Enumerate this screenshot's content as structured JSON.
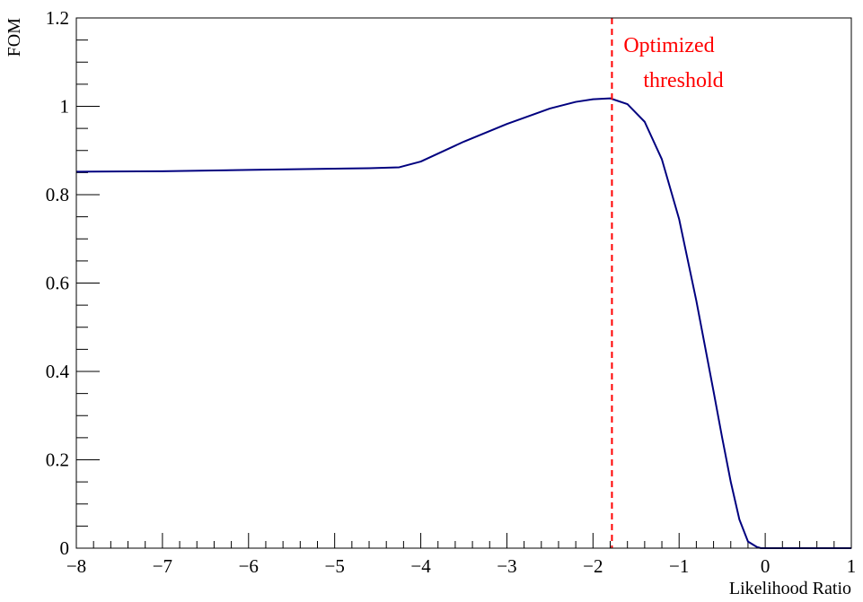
{
  "chart_data": {
    "type": "line",
    "title": "",
    "xlabel": "Likelihood Ratio",
    "ylabel": "FOM",
    "xlim": [
      -8,
      1
    ],
    "ylim": [
      0,
      1.2
    ],
    "x_ticks": [
      -8,
      -7,
      -6,
      -5,
      -4,
      -3,
      -2,
      -1,
      0,
      1
    ],
    "x_tick_labels": [
      "−8",
      "−7",
      "−6",
      "−5",
      "−4",
      "−3",
      "−2",
      "−1",
      "0",
      "1"
    ],
    "y_ticks": [
      0,
      0.2,
      0.4,
      0.6,
      0.8,
      1,
      1.2
    ],
    "y_tick_labels": [
      "0",
      "0.2",
      "0.4",
      "0.6",
      "0.8",
      "1",
      "1.2"
    ],
    "grid": false,
    "series": [
      {
        "color": "#00007f",
        "x": [
          -8.0,
          -7.0,
          -6.0,
          -5.0,
          -4.6,
          -4.25,
          -4.0,
          -3.5,
          -3.0,
          -2.5,
          -2.2,
          -2.0,
          -1.8,
          -1.6,
          -1.4,
          -1.2,
          -1.0,
          -0.8,
          -0.6,
          -0.5,
          -0.4,
          -0.3,
          -0.2,
          -0.1,
          -0.05,
          0.0,
          0.5,
          1.0
        ],
        "y": [
          0.852,
          0.853,
          0.856,
          0.859,
          0.86,
          0.862,
          0.875,
          0.92,
          0.96,
          0.995,
          1.01,
          1.016,
          1.018,
          1.005,
          0.965,
          0.88,
          0.745,
          0.56,
          0.355,
          0.25,
          0.15,
          0.065,
          0.015,
          0.003,
          0.0,
          0.0,
          0.0,
          0.0
        ]
      }
    ],
    "annotations": [
      {
        "type": "vline",
        "x": -1.78,
        "color": "#ff0000",
        "style": "dashed"
      },
      {
        "type": "text",
        "lines": [
          "Optimized",
          "threshold"
        ],
        "color": "#ff0000"
      }
    ]
  }
}
